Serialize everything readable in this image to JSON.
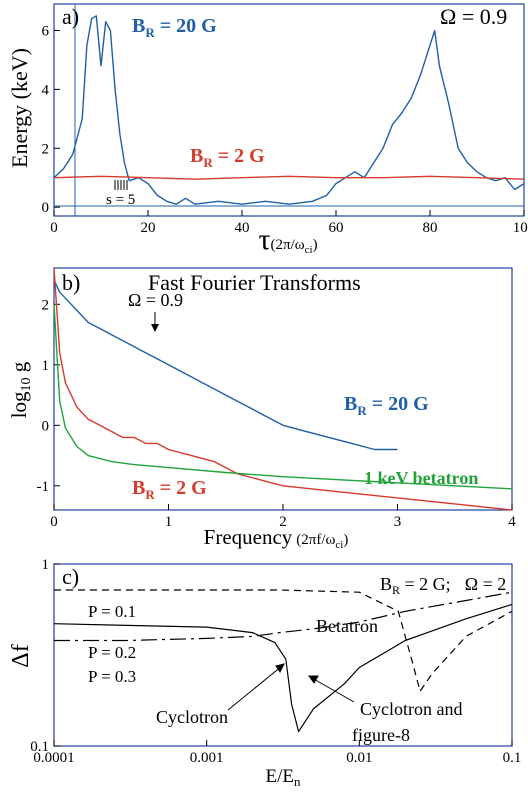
{
  "chart_data": [
    {
      "type": "line",
      "panel_label": "a)",
      "ylabel": "Energy (keV)",
      "xlabel_main": "τ",
      "xlabel_unit": "(2π/ω",
      "xlabel_unit_sub": "ci",
      "xlabel_unit_close": ")",
      "xlim": [
        0,
        100
      ],
      "ylim": [
        -0.3,
        6.9
      ],
      "xticks": [
        0,
        20,
        40,
        60,
        80,
        100
      ],
      "yticks": [
        0,
        2,
        4,
        6
      ],
      "omega_text": "Ω = 0.9",
      "s_annotation": "s = 5",
      "series": [
        {
          "name_main": "B",
          "name_sub": "R",
          "name_rest": " = 20 G",
          "color": "#1f5fa8",
          "x": [
            0,
            2,
            4,
            6,
            7,
            8,
            9,
            10,
            11,
            12,
            13,
            14,
            15,
            16,
            18,
            20,
            22,
            24,
            26,
            28,
            30,
            35,
            40,
            45,
            50,
            55,
            58,
            60,
            62,
            64,
            66,
            68,
            70,
            72,
            74,
            76,
            78,
            80,
            81,
            82,
            84,
            86,
            88,
            90,
            92,
            94,
            96,
            98,
            100
          ],
          "y": [
            1.0,
            1.3,
            1.8,
            3.0,
            5.5,
            6.4,
            6.5,
            4.8,
            6.3,
            6.0,
            4.0,
            2.5,
            1.5,
            0.9,
            1.0,
            0.8,
            0.4,
            0.2,
            0.1,
            0.3,
            0.1,
            0.2,
            0.1,
            0.2,
            0.1,
            0.2,
            0.4,
            0.8,
            1.0,
            1.2,
            1.0,
            1.5,
            2.0,
            2.8,
            3.2,
            3.7,
            4.5,
            5.5,
            6.0,
            4.8,
            3.5,
            2.0,
            1.5,
            1.2,
            1.0,
            0.9,
            1.0,
            0.6,
            0.8
          ]
        },
        {
          "name_main": "B",
          "name_sub": "R",
          "name_rest": " = 2 G",
          "color": "#d63a2a",
          "x": [
            0,
            10,
            20,
            30,
            40,
            50,
            60,
            70,
            80,
            90,
            100
          ],
          "y": [
            1.0,
            1.05,
            1.0,
            0.95,
            1.0,
            1.05,
            1.0,
            1.0,
            1.05,
            1.0,
            0.95
          ]
        }
      ]
    },
    {
      "type": "line",
      "panel_label": "b)",
      "title": "Fast Fourier Transforms",
      "ylabel_main": "log",
      "ylabel_sub": "10",
      "ylabel_rest": " g",
      "xlabel": "Frequency",
      "xlabel_unit": "(2πf/ω",
      "xlabel_unit_sub": "ci",
      "xlabel_unit_close": ")",
      "xlim": [
        0,
        4
      ],
      "ylim": [
        -1.4,
        2.6
      ],
      "xticks": [
        0,
        1,
        2,
        3,
        4
      ],
      "yticks": [
        -1,
        0,
        1,
        2
      ],
      "omega_text": "Ω = 0.9",
      "omega_arrow_x": 0.85,
      "series": [
        {
          "name_main": "B",
          "name_sub": "R",
          "name_rest": " = 20 G",
          "color": "#1f5fa8",
          "x": [
            0.0,
            0.05,
            0.1,
            0.2,
            0.3,
            0.4,
            0.5,
            0.6,
            0.7,
            0.8,
            0.9,
            1.0,
            1.1,
            1.2,
            1.3,
            1.4,
            1.5,
            1.6,
            1.7,
            1.8,
            1.9,
            2.0,
            2.2,
            2.4,
            2.6,
            2.8,
            3.0
          ],
          "y": [
            2.4,
            2.2,
            2.1,
            1.9,
            1.7,
            1.6,
            1.5,
            1.4,
            1.3,
            1.2,
            1.1,
            1.0,
            0.9,
            0.8,
            0.7,
            0.6,
            0.5,
            0.4,
            0.3,
            0.2,
            0.1,
            0.0,
            -0.1,
            -0.2,
            -0.3,
            -0.4,
            -0.4
          ]
        },
        {
          "name_main": "B",
          "name_sub": "R",
          "name_rest": " = 2 G",
          "color": "#d63a2a",
          "x": [
            0.0,
            0.05,
            0.1,
            0.2,
            0.3,
            0.4,
            0.5,
            0.6,
            0.7,
            0.8,
            0.9,
            1.0,
            1.2,
            1.4,
            1.6,
            1.8,
            2.0,
            2.5,
            3.0,
            3.5,
            4.0
          ],
          "y": [
            2.6,
            1.2,
            0.7,
            0.3,
            0.1,
            0.0,
            -0.1,
            -0.2,
            -0.2,
            -0.3,
            -0.3,
            -0.4,
            -0.5,
            -0.6,
            -0.8,
            -0.9,
            -1.0,
            -1.1,
            -1.2,
            -1.3,
            -1.4
          ]
        },
        {
          "name": "1 keV betatron",
          "color": "#22a33a",
          "x": [
            0.0,
            0.05,
            0.1,
            0.2,
            0.3,
            0.5,
            0.7,
            1.0,
            1.5,
            2.0,
            2.5,
            3.0,
            3.5,
            4.0
          ],
          "y": [
            2.0,
            0.4,
            -0.05,
            -0.35,
            -0.5,
            -0.6,
            -0.65,
            -0.7,
            -0.78,
            -0.85,
            -0.9,
            -0.95,
            -1.0,
            -1.05
          ]
        }
      ]
    },
    {
      "type": "line",
      "panel_label": "c)",
      "ylabel": "Δf",
      "xlabel_main": "E/E",
      "xlabel_sub": "n",
      "xscale": "log",
      "yscale": "log",
      "xlim": [
        0.0001,
        0.1
      ],
      "ylim": [
        0.1,
        1
      ],
      "xticks": [
        0.0001,
        0.001,
        0.01,
        0.1
      ],
      "xtick_labels": [
        "0.0001",
        "0.001",
        "0.01",
        "0.1"
      ],
      "yticks": [
        0.1,
        1
      ],
      "ytick_labels": [
        "0.1",
        "1"
      ],
      "param_text_main": "B",
      "param_text_sub": "R",
      "param_text_rest": " = 2 G;",
      "param_omega": "Ω = 2",
      "annotations": [
        "Betatron",
        "Cyclotron",
        "Cyclotron and",
        "figure-8"
      ],
      "series": [
        {
          "name": "P = 0.1",
          "style": "dashed",
          "color": "#000000",
          "x": [
            0.0001,
            0.0003,
            0.001,
            0.003,
            0.01,
            0.018,
            0.022,
            0.025,
            0.03,
            0.05,
            0.1
          ],
          "y": [
            0.72,
            0.72,
            0.72,
            0.72,
            0.7,
            0.55,
            0.3,
            0.2,
            0.25,
            0.4,
            0.55
          ]
        },
        {
          "name": "P = 0.2",
          "style": "solid",
          "color": "#000000",
          "x": [
            0.0001,
            0.0003,
            0.001,
            0.002,
            0.0028,
            0.0033,
            0.0036,
            0.004,
            0.005,
            0.008,
            0.01,
            0.02,
            0.05,
            0.1
          ],
          "y": [
            0.47,
            0.46,
            0.45,
            0.42,
            0.37,
            0.3,
            0.17,
            0.12,
            0.16,
            0.22,
            0.27,
            0.38,
            0.5,
            0.6
          ]
        },
        {
          "name": "P = 0.3",
          "style": "longdash",
          "color": "#000000",
          "x": [
            0.0001,
            0.0003,
            0.001,
            0.002,
            0.003,
            0.005,
            0.01,
            0.02,
            0.05,
            0.1
          ],
          "y": [
            0.38,
            0.38,
            0.39,
            0.4,
            0.42,
            0.44,
            0.48,
            0.55,
            0.63,
            0.7
          ]
        }
      ]
    }
  ]
}
